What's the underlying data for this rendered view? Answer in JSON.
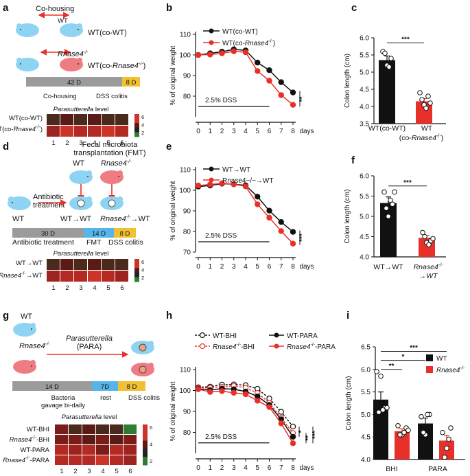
{
  "colors": {
    "black": "#111111",
    "red": "#e8302a",
    "gray": "#9b9b9b",
    "blue": "#55b5e8",
    "yellow": "#f2c033",
    "mouse_blue": "#8fd3f2",
    "mouse_red": "#ef7b83"
  },
  "panels": {
    "a": {
      "label": "a",
      "cohousing": "Co-housing",
      "wt": "WT",
      "wt_co_wt": "WT(co-WT)",
      "rnase": "Rnase4",
      "rnase_sup": "-/-",
      "wt_co_rnase_prefix": "WT(co-",
      "wt_co_rnase_gene": "Rnase4",
      "wt_co_rnase_sup": "-/-",
      "wt_co_rnase_suffix": ")",
      "timeline": [
        {
          "text": "42 D",
          "color": "gray"
        },
        {
          "text": "8 D",
          "color": "yellow"
        }
      ],
      "timeline_labels": [
        "Co-housing",
        "DSS colitis"
      ],
      "heatmap_title_italic": "Parasutterella",
      "heatmap_title_rest": " level",
      "rows": [
        {
          "label": "WT(co-WT)"
        },
        {
          "label_prefix": "WT(co-",
          "label_gene": "Rnase4",
          "label_sup": "-/-",
          "label_suffix": ")"
        }
      ],
      "cols": [
        "1",
        "2",
        "3",
        "4",
        "5",
        "6"
      ],
      "heat": [
        [
          1,
          2,
          1,
          2,
          1,
          1
        ],
        [
          4,
          6,
          5,
          5,
          6,
          5
        ]
      ],
      "scale": [
        "6",
        "4",
        "2"
      ]
    },
    "b": {
      "label": "b",
      "chart_data": {
        "type": "line",
        "x": [
          0,
          1,
          2,
          3,
          4,
          5,
          6,
          7,
          8
        ],
        "series": [
          {
            "name": "WT(co-WT)",
            "color": "black",
            "values": [
              100,
              100.8,
              101.6,
              102.7,
              102.2,
              96.3,
              92.6,
              86.8,
              81.8
            ]
          },
          {
            "name": "WT(co-Rnase4-/-)",
            "color": "red",
            "values": [
              100,
              100.2,
              100.8,
              101.8,
              101.3,
              92.2,
              87.5,
              80.5,
              75.8
            ]
          }
        ],
        "ylabel": "% of original weight",
        "xlabel": "days",
        "ylim": [
          70,
          110
        ],
        "yticks": [
          "80",
          "90",
          "100",
          "110"
        ],
        "xticks": [
          "0",
          "1",
          "2",
          "3",
          "4",
          "5",
          "6",
          "7",
          "8"
        ],
        "dss_label": "2.5% DSS",
        "sig": [
          "**"
        ]
      },
      "legend": [
        {
          "text": "WT(co-WT)"
        },
        {
          "prefix": "WT(co-",
          "gene": "Rnase4",
          "sup": "-/-",
          "suffix": ")"
        }
      ]
    },
    "c": {
      "label": "c",
      "chart_data": {
        "type": "bar",
        "categories": [
          "WT(co-WT)",
          "WT (co-Rnase4-/-)"
        ],
        "values": [
          5.35,
          4.15
        ],
        "errors": [
          0.12,
          0.08
        ],
        "points": [
          [
            5.6,
            5.2,
            5.4,
            5.55,
            5.15
          ],
          [
            4.4,
            4.05,
            4.3,
            4.2,
            3.95,
            4.1
          ]
        ],
        "ylabel": "Colon length  (cm)",
        "ylim": [
          3.5,
          6.0
        ],
        "yticks": [
          "3.5",
          "4.0",
          "4.5",
          "5.0",
          "5.5",
          "6.0"
        ],
        "sig": "***"
      },
      "xlab1": "WT(co-WT)",
      "xlab2a": "WT",
      "xlab2b_prefix": "(co-",
      "xlab2b_gene": "Rnase4",
      "xlab2b_sup": "-/-",
      "xlab2b_suffix": ")"
    },
    "d": {
      "label": "d",
      "fmt_title1": "Fecal microbiota",
      "fmt_title2": "transplantation (FMT)",
      "wt": "WT",
      "rnase": "Rnase4",
      "sup": "-/-",
      "antibiotic1": "Antibiotic",
      "antibiotic2": "treatment",
      "wt_left": "WT",
      "wt_arrow_wt": "WT→WT",
      "rnase_arrow_wt_gene": "Rnase4",
      "rnase_arrow_wt_sup": "-/-",
      "rnase_arrow_wt_suffix": "→WT",
      "timeline": [
        {
          "text": "30 D",
          "color": "gray"
        },
        {
          "text": "14 D",
          "color": "blue"
        },
        {
          "text": "8 D",
          "color": "yellow"
        }
      ],
      "timeline_labels": [
        "Antibiotic treatment",
        "FMT",
        "DSS colitis"
      ],
      "heatmap_title_italic": "Parasutterella",
      "heatmap_title_rest": " level",
      "rows": [
        {
          "label": "WT→WT"
        },
        {
          "label_gene": "Rnase4",
          "label_sup": "-/-",
          "label_suffix": "→WT"
        }
      ],
      "cols": [
        "1",
        "2",
        "3",
        "4",
        "5",
        "6"
      ],
      "heat": [
        [
          1,
          2,
          1,
          2,
          1,
          1
        ],
        [
          4,
          5,
          5,
          6,
          5,
          4
        ]
      ],
      "scale": [
        "6",
        "4",
        "2"
      ]
    },
    "e": {
      "label": "e",
      "chart_data": {
        "type": "line",
        "x": [
          0,
          1,
          2,
          3,
          4,
          5,
          6,
          7,
          8
        ],
        "series": [
          {
            "name": "WT→WT",
            "color": "black",
            "values": [
              101.8,
              102.3,
              103.2,
              102.9,
              102.4,
              96.9,
              90.1,
              84.6,
              79.8
            ]
          },
          {
            "name": "Rnase4−/−→WT",
            "color": "red",
            "values": [
              102.3,
              102.8,
              103.4,
              102.9,
              101.9,
              93.2,
              86.7,
              80.2,
              74.1
            ]
          }
        ],
        "ylabel": "% of original weight",
        "xlabel": "days",
        "ylim": [
          70,
          110
        ],
        "yticks": [
          "70",
          "80",
          "90",
          "100",
          "110"
        ],
        "xticks": [
          "0",
          "1",
          "2",
          "3",
          "4",
          "5",
          "6",
          "7",
          "8"
        ],
        "dss_label": "2.5% DSS",
        "sig": [
          "***"
        ]
      },
      "legend": [
        {
          "text": "WT→WT"
        },
        {
          "text": "Rnase4−/−→WT"
        }
      ]
    },
    "f": {
      "label": "f",
      "chart_data": {
        "type": "bar",
        "categories": [
          "WT→WT",
          "Rnase4-/- →WT"
        ],
        "values": [
          5.33,
          4.47
        ],
        "errors": [
          0.15,
          0.06
        ],
        "points": [
          [
            5.6,
            5.0,
            5.3,
            5.2,
            5.4,
            5.6
          ],
          [
            4.6,
            4.35,
            4.4,
            4.5,
            4.3,
            4.45
          ]
        ],
        "ylabel": "Colon length  (cm)",
        "ylim": [
          4.0,
          6.0
        ],
        "yticks": [
          "4.0",
          "4.5",
          "5.0",
          "5.5",
          "6.0"
        ],
        "sig": "***"
      },
      "xlab1": "WT→WT",
      "xlab2_gene": "Rnase4",
      "xlab2_sup": "-/-",
      "xlab2_line2": "→WT"
    },
    "g": {
      "label": "g",
      "wt": "WT",
      "rnase": "Rnase4",
      "sup": "-/-",
      "para1": "Parasutterella",
      "para2": "(PARA)",
      "timeline": [
        {
          "text": "14 D",
          "color": "gray"
        },
        {
          "text": "7D",
          "color": "blue"
        },
        {
          "text": "8 D",
          "color": "yellow"
        }
      ],
      "timeline_label1a": "Bacteria",
      "timeline_label1b": "gavage bi-daily",
      "timeline_label2": "rest",
      "timeline_label3": "DSS colitis",
      "heatmap_title_italic": "Parasutterella",
      "heatmap_title_rest": " level",
      "rows": [
        {
          "label": "WT-BHI"
        },
        {
          "label_gene": "Rnase4",
          "label_sup": "-/-",
          "label_suffix": "-BHI"
        },
        {
          "label": "WT-PARA"
        },
        {
          "label_gene": "Rnase4",
          "label_sup": "-/-",
          "label_suffix": "-PARA"
        }
      ],
      "cols": [
        "1",
        "2",
        "3",
        "4",
        "5",
        "6"
      ],
      "heat": [
        [
          3,
          1,
          2,
          1,
          1,
          0
        ],
        [
          3,
          3,
          2,
          3,
          2,
          3
        ],
        [
          5,
          4,
          5,
          3,
          5,
          4
        ],
        [
          5,
          5,
          5,
          6,
          5,
          4
        ]
      ],
      "scale": [
        "6",
        "4",
        "2"
      ]
    },
    "h": {
      "label": "h",
      "chart_data": {
        "type": "line",
        "x": [
          0,
          1,
          2,
          3,
          4,
          5,
          6,
          7,
          8
        ],
        "series": [
          {
            "name": "WT-BHI",
            "color": "black",
            "dashed": true,
            "open": true,
            "values": [
              101.5,
              101.8,
              102.8,
              102.9,
              102.5,
              100.8,
              96.2,
              89.8,
              82.8
            ]
          },
          {
            "name": "Rnase4-/--BHI",
            "color": "red",
            "dashed": true,
            "open": true,
            "values": [
              101.2,
              101.3,
              101.8,
              102.2,
              101.3,
              98.8,
              94.2,
              86.9,
              79.7
            ]
          },
          {
            "name": "WT-PARA",
            "color": "black",
            "dashed": false,
            "open": false,
            "values": [
              100.8,
              100.2,
              100.9,
              100.6,
              99.5,
              97.2,
              93.1,
              86.2,
              77.9
            ]
          },
          {
            "name": "Rnase4-/--PARA",
            "color": "red",
            "dashed": false,
            "open": false,
            "values": [
              100.6,
              99.3,
              99.7,
              98.9,
              98.2,
              95.1,
              92.1,
              84.3,
              74.8
            ]
          }
        ],
        "ylabel": "% of original weight",
        "xlabel": "days",
        "ylim": [
          70,
          110
        ],
        "yticks": [
          "80",
          "90",
          "100",
          "110"
        ],
        "xticks": [
          "0",
          "1",
          "2",
          "3",
          "4",
          "5",
          "6",
          "7",
          "8"
        ],
        "dss_label": "2.5% DSS",
        "sig": [
          "*",
          "**",
          "***"
        ]
      },
      "legend": [
        {
          "text": "WT-BHI"
        },
        {
          "gene": "Rnase4",
          "sup": "-/-",
          "suffix": "-BHI"
        },
        {
          "text": "WT-PARA"
        },
        {
          "gene": "Rnase4",
          "sup": "-/-",
          "suffix": "-PARA"
        }
      ]
    },
    "i": {
      "label": "i",
      "chart_data": {
        "type": "bar",
        "categories": [
          "BHI",
          "PARA"
        ],
        "series": [
          {
            "name": "WT",
            "color": "black",
            "values": [
              5.33,
              4.8
            ],
            "errors": [
              0.17,
              0.12
            ]
          },
          {
            "name": "Rnase4-/-",
            "color": "red",
            "values": [
              4.63,
              4.42
            ],
            "errors": [
              0.05,
              0.12
            ]
          }
        ],
        "points": [
          [
            [
              5.95,
              5.85,
              5.15,
              5.05,
              5.1,
              5.15
            ],
            [
              4.95,
              4.55,
              5.0,
              4.6,
              5.0
            ]
          ],
          [
            [
              4.75,
              4.55,
              4.7,
              4.55,
              4.6,
              4.65
            ],
            [
              4.6,
              4.25,
              4.7,
              4.05,
              4.45
            ]
          ]
        ],
        "ylabel": "Colon length  (cm)",
        "ylim": [
          4.0,
          6.5
        ],
        "yticks": [
          "4.0",
          "4.5",
          "5.0",
          "5.5",
          "6.0",
          "6.5"
        ],
        "sig": [
          "**",
          "*",
          "***"
        ]
      },
      "legend": [
        {
          "text": "WT"
        },
        {
          "gene": "Rnase4",
          "sup": "-/-"
        }
      ],
      "xlab1": "BHI",
      "xlab2": "PARA"
    }
  }
}
